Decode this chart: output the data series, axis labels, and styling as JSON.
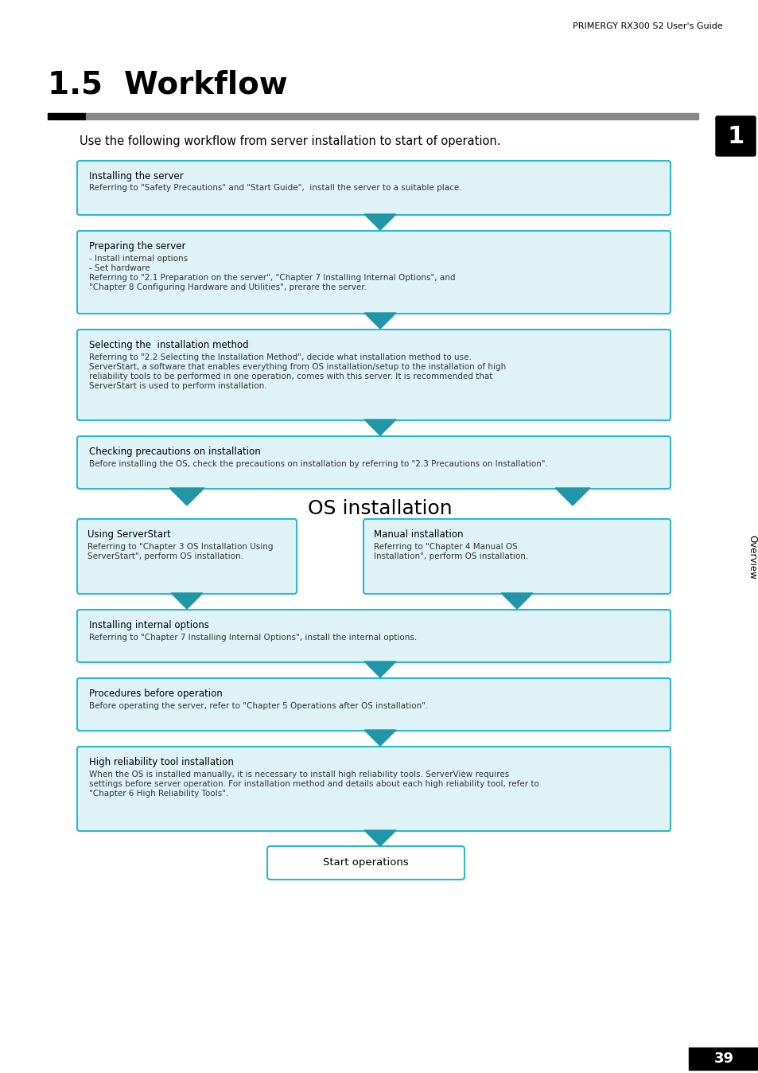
{
  "header_text": "PRIMERGY RX300 S2 User's Guide",
  "chapter_num": "1",
  "title": "1.5  Workflow",
  "subtitle": "Use the following workflow from server installation to start of operation.",
  "sidebar_text": "Overview",
  "page_num": "39",
  "box_bg": "#dff3f7",
  "box_border": "#2ab8cc",
  "arrow_color": "#2196a8",
  "title_bar_black": "#000000",
  "title_bar_gray": "#888888"
}
